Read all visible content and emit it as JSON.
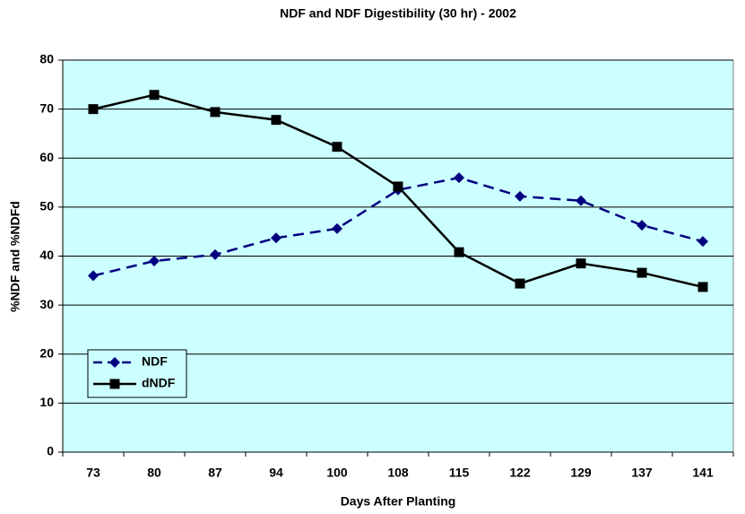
{
  "chart_data": {
    "type": "line",
    "title": "NDF and NDF Digestibility (30 hr) - 2002",
    "x_label": "Days After Planting",
    "y_label": "%NDF and %NDFd",
    "categories": [
      "73",
      "80",
      "87",
      "94",
      "100",
      "108",
      "115",
      "122",
      "129",
      "137",
      "141"
    ],
    "series": [
      {
        "name": "NDF",
        "color": "#000080",
        "dashed": true,
        "marker": "diamond",
        "values": [
          36,
          39,
          40.3,
          43.7,
          45.6,
          53.5,
          56,
          52.2,
          51.3,
          46.3,
          43
        ]
      },
      {
        "name": "dNDF",
        "color": "#000000",
        "dashed": false,
        "marker": "square",
        "values": [
          70,
          72.9,
          69.4,
          67.8,
          62.3,
          54.2,
          40.8,
          34.4,
          38.5,
          36.6,
          33.7
        ]
      }
    ],
    "ylim": [
      0,
      80
    ],
    "yticks": [
      0,
      10,
      20,
      30,
      40,
      50,
      60,
      70,
      80
    ],
    "grid": true,
    "plot_background": "#ccffff",
    "legend_loc": "lower left"
  }
}
